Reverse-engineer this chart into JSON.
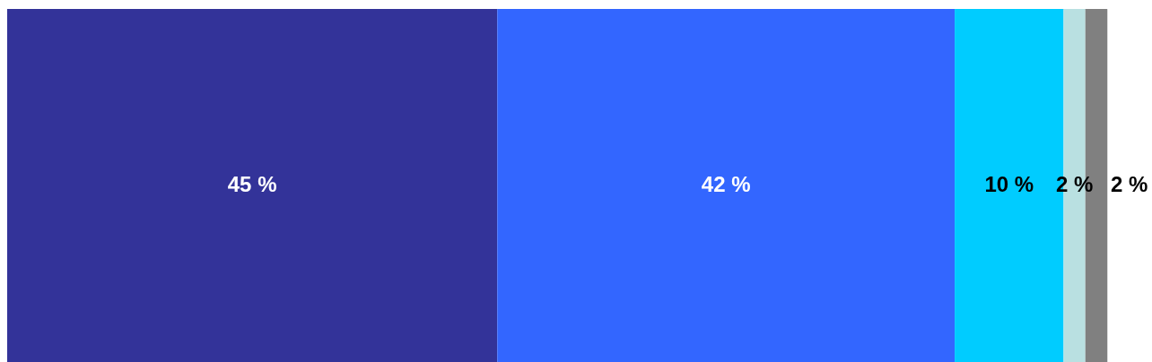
{
  "chart_data": {
    "type": "bar",
    "orientation": "horizontal",
    "stacked": true,
    "categories": [
      null
    ],
    "series": [
      {
        "color": "#333399",
        "values": [
          45
        ],
        "value_labels": [
          "45 %"
        ]
      },
      {
        "color": "#3366ff",
        "values": [
          42
        ],
        "value_labels": [
          "42 %"
        ]
      },
      {
        "color": "#00ccff",
        "values": [
          10
        ],
        "value_labels": [
          "10 %"
        ]
      },
      {
        "color": "#b9e0e1",
        "values": [
          2
        ],
        "value_labels": [
          "2 %"
        ]
      },
      {
        "color": "#808080",
        "values": [
          2
        ],
        "value_labels": [
          "2 %"
        ]
      }
    ]
  }
}
